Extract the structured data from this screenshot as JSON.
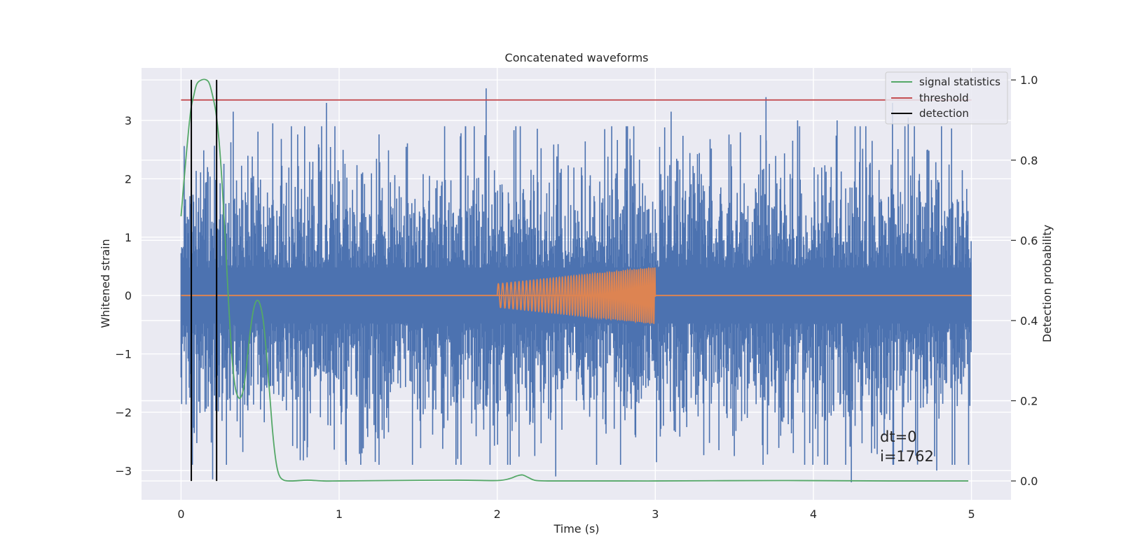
{
  "chart_data": {
    "type": "line",
    "title": "Concatenated waveforms",
    "xlabel": "Time (s)",
    "ylabel": "Whitened strain",
    "y2label": "Detection probability",
    "xlim": [
      -0.25,
      5.25
    ],
    "ylim": [
      -3.5,
      3.9
    ],
    "y2lim": [
      -0.047,
      1.03
    ],
    "x_ticks": [
      0,
      1,
      2,
      3,
      4,
      5
    ],
    "x_tick_labels": [
      "0",
      "1",
      "2",
      "3",
      "4",
      "5"
    ],
    "y_ticks": [
      -3,
      -2,
      -1,
      0,
      1,
      2,
      3
    ],
    "y_tick_labels": [
      "−3",
      "−2",
      "−1",
      "0",
      "1",
      "2",
      "3"
    ],
    "y2_ticks": [
      0.0,
      0.2,
      0.4,
      0.6,
      0.8,
      1.0
    ],
    "y2_tick_labels": [
      "0.0",
      "0.2",
      "0.4",
      "0.6",
      "0.8",
      "1.0"
    ],
    "grid": true,
    "legend_position": "top-right",
    "legend": [
      "signal statistics",
      "threshold",
      "detection"
    ],
    "background_color": "#EAEAF2",
    "colors": {
      "strain": "#4C72B0",
      "template": "#DD8452",
      "signal_statistics": "#55A868",
      "threshold": "#C44E52",
      "detection": "#000000"
    },
    "strain": {
      "x_range": [
        0,
        5
      ],
      "band": [
        -0.48,
        0.48
      ],
      "peaks": [
        {
          "x": 0.92,
          "y": 3.3
        },
        {
          "x": 1.93,
          "y": 3.55
        },
        {
          "x": 3.1,
          "y": 3.15
        },
        {
          "x": 3.7,
          "y": 3.4
        },
        {
          "x": 4.5,
          "y": 3.3
        },
        {
          "x": 0.33,
          "y": 3.15
        },
        {
          "x": 1.8,
          "y": 2.9
        },
        {
          "x": 2.68,
          "y": 2.85
        },
        {
          "x": 3.9,
          "y": 3.0
        },
        {
          "x": 0.58,
          "y": 2.95
        },
        {
          "x": 4.15,
          "y": 3.0
        },
        {
          "x": 4.6,
          "y": 3.05
        }
      ],
      "troughs": [
        {
          "x": 0.2,
          "y": -3.15
        },
        {
          "x": 2.37,
          "y": -3.1
        },
        {
          "x": 4.24,
          "y": -3.2
        },
        {
          "x": 4.78,
          "y": -3.0
        },
        {
          "x": 1.75,
          "y": -2.8
        },
        {
          "x": 2.78,
          "y": -2.9
        },
        {
          "x": 4.07,
          "y": -2.9
        },
        {
          "x": 0.8,
          "y": -2.6
        },
        {
          "x": 3.5,
          "y": -2.75
        }
      ]
    },
    "template_chirp": {
      "x_range": [
        2.0,
        3.0
      ],
      "amplitude_start": 0.2,
      "amplitude_end": 0.48,
      "freq_start_hz": 35,
      "freq_end_hz": 80
    },
    "signal_statistics": {
      "x": [
        0.0,
        0.03,
        0.06,
        0.08,
        0.1,
        0.13,
        0.16,
        0.18,
        0.2,
        0.22,
        0.24,
        0.26,
        0.28,
        0.3,
        0.32,
        0.34,
        0.36,
        0.38,
        0.4,
        0.42,
        0.44,
        0.46,
        0.48,
        0.5,
        0.52,
        0.54,
        0.56,
        0.58,
        0.6,
        0.62,
        0.65,
        0.7,
        0.8,
        0.9,
        1.0,
        1.3,
        1.75,
        2.0,
        2.08,
        2.12,
        2.16,
        2.2,
        2.25,
        2.4,
        3.0,
        3.8,
        4.5,
        4.98
      ],
      "y": [
        0.66,
        0.8,
        0.92,
        0.96,
        0.99,
        1.0,
        1.0,
        0.99,
        0.96,
        0.92,
        0.85,
        0.74,
        0.6,
        0.45,
        0.32,
        0.24,
        0.21,
        0.21,
        0.24,
        0.31,
        0.38,
        0.43,
        0.45,
        0.44,
        0.4,
        0.32,
        0.22,
        0.12,
        0.05,
        0.015,
        0.002,
        0.0,
        0.002,
        0.0,
        0.0,
        0.001,
        0.002,
        0.001,
        0.006,
        0.012,
        0.015,
        0.008,
        0.001,
        0.0,
        0.0,
        0.001,
        0.0,
        0.0
      ]
    },
    "threshold": {
      "value": 0.95,
      "x_range": [
        0,
        5
      ]
    },
    "detections": [
      0.065,
      0.225
    ],
    "detection_span": [
      0.0,
      1.0
    ],
    "annotation": [
      "dt=0",
      "i=1762"
    ]
  }
}
